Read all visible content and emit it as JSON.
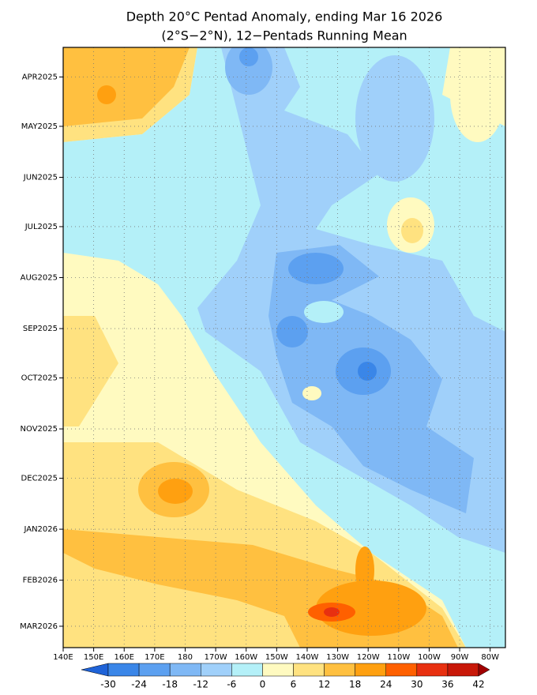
{
  "chart_data": {
    "type": "hovmoller",
    "title": "Depth 20°C Pentad Anomaly, ending Mar 16 2026",
    "subtitle": "(2°S−2°N), 12−Pentads Running Mean",
    "xlim": [
      140,
      285
    ],
    "xticks": [
      {
        "value": 140,
        "label": "140E"
      },
      {
        "value": 150,
        "label": "150E"
      },
      {
        "value": 160,
        "label": "160E"
      },
      {
        "value": 170,
        "label": "170E"
      },
      180,
      {
        "value": 190,
        "label": "170W"
      },
      {
        "value": 200,
        "label": "160W"
      },
      {
        "value": 210,
        "label": "150W"
      },
      {
        "value": 220,
        "label": "140W"
      },
      {
        "value": 230,
        "label": "130W"
      },
      {
        "value": 240,
        "label": "120W"
      },
      {
        "value": 250,
        "label": "110W"
      },
      {
        "value": 260,
        "label": "100W"
      },
      {
        "value": 270,
        "label": "90W"
      },
      {
        "value": 280,
        "label": "80W"
      }
    ],
    "ylim": [
      "2025-03-14",
      "2026-03-14"
    ],
    "yticks": [
      {
        "value": "2025-04-01",
        "label": "APR2025"
      },
      {
        "value": "2025-05-01",
        "label": "MAY2025"
      },
      {
        "value": "2025-06-01",
        "label": "JUN2025"
      },
      {
        "value": "2025-07-01",
        "label": "JUL2025"
      },
      {
        "value": "2025-08-01",
        "label": "AUG2025"
      },
      {
        "value": "2025-09-01",
        "label": "SEP2025"
      },
      {
        "value": "2025-10-01",
        "label": "OCT2025"
      },
      {
        "value": "2025-11-01",
        "label": "NOV2025"
      },
      {
        "value": "2025-12-01",
        "label": "DEC2025"
      },
      {
        "value": "2026-01-01",
        "label": "JAN2026"
      },
      {
        "value": "2026-02-01",
        "label": "FEB2026"
      },
      {
        "value": "2026-03-01",
        "label": "MAR2026"
      }
    ],
    "grid": true,
    "levels": [
      -30,
      -24,
      -18,
      -12,
      -6,
      0,
      6,
      12,
      18,
      24,
      30,
      36,
      42
    ],
    "colors": [
      "#1f63d8",
      "#3a86e8",
      "#5ca0f0",
      "#7fb8f5",
      "#a0d0fa",
      "#b4f0f8",
      "#fffac0",
      "#ffe280",
      "#ffc040",
      "#ffa010",
      "#ff6000",
      "#e83010",
      "#c81808",
      "#a00000"
    ]
  }
}
